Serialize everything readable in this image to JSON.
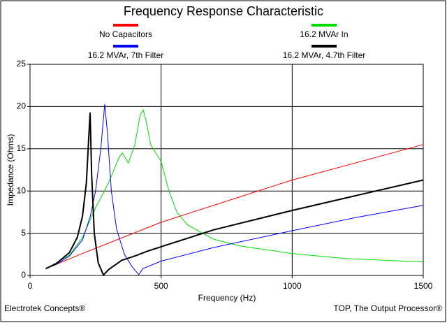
{
  "chart_data": {
    "type": "line",
    "title": "Frequency Response Characteristic",
    "xlabel": "Frequency (Hz)",
    "ylabel": "Impedance (Ohms)",
    "footer_left": "Electrotek Concepts®",
    "footer_right": "TOP, The Output Processor®",
    "xlim": [
      0,
      1500
    ],
    "xticks": [
      0,
      500,
      1000,
      1500
    ],
    "ylim": [
      0,
      25
    ],
    "yticks": [
      0,
      5,
      10,
      15,
      20,
      25
    ],
    "grid": true,
    "series": [
      {
        "name": "No Capacitors",
        "color": "#ff0000",
        "x": [
          60,
          200,
          500,
          1000,
          1500
        ],
        "values": [
          0.8,
          2.6,
          6.3,
          11.3,
          15.5
        ]
      },
      {
        "name": "16.2 MVAr In",
        "color": "#00dd00",
        "x": [
          60,
          150,
          200,
          250,
          300,
          340,
          352,
          375,
          400,
          420,
          432,
          445,
          460,
          500,
          530,
          560,
          600,
          700,
          800,
          1000,
          1200,
          1500
        ],
        "values": [
          0.8,
          2.4,
          4.5,
          8,
          11,
          14,
          14.5,
          13.3,
          15.5,
          19,
          19.6,
          18,
          15.5,
          13.5,
          10,
          7.5,
          6,
          4.3,
          3.5,
          2.6,
          2,
          1.6
        ]
      },
      {
        "name": "16.2 MVAr, 7th Filter",
        "color": "#0000ff",
        "x": [
          60,
          100,
          150,
          200,
          230,
          250,
          270,
          285,
          295,
          310,
          330,
          360,
          390,
          415,
          430,
          500,
          700,
          1000,
          1250,
          1500
        ],
        "values": [
          0.8,
          1.3,
          2.3,
          4.2,
          7,
          10,
          15,
          20.3,
          17,
          10,
          5.5,
          2.5,
          1,
          0.1,
          0.8,
          1.7,
          3.3,
          5.3,
          6.9,
          8.3
        ]
      },
      {
        "name": "16.2 MVAr, 4.7th Filter",
        "color": "#000000",
        "x": [
          60,
          100,
          150,
          180,
          200,
          215,
          225,
          229,
          235,
          245,
          260,
          280,
          300,
          350,
          400,
          450,
          500,
          700,
          1000,
          1250,
          1500
        ],
        "values": [
          0.8,
          1.4,
          2.7,
          4.5,
          7,
          11,
          17,
          19.3,
          12,
          5,
          1.5,
          0.05,
          0.7,
          1.8,
          2.3,
          2.9,
          3.4,
          5.4,
          7.7,
          9.5,
          11.3
        ]
      }
    ]
  }
}
